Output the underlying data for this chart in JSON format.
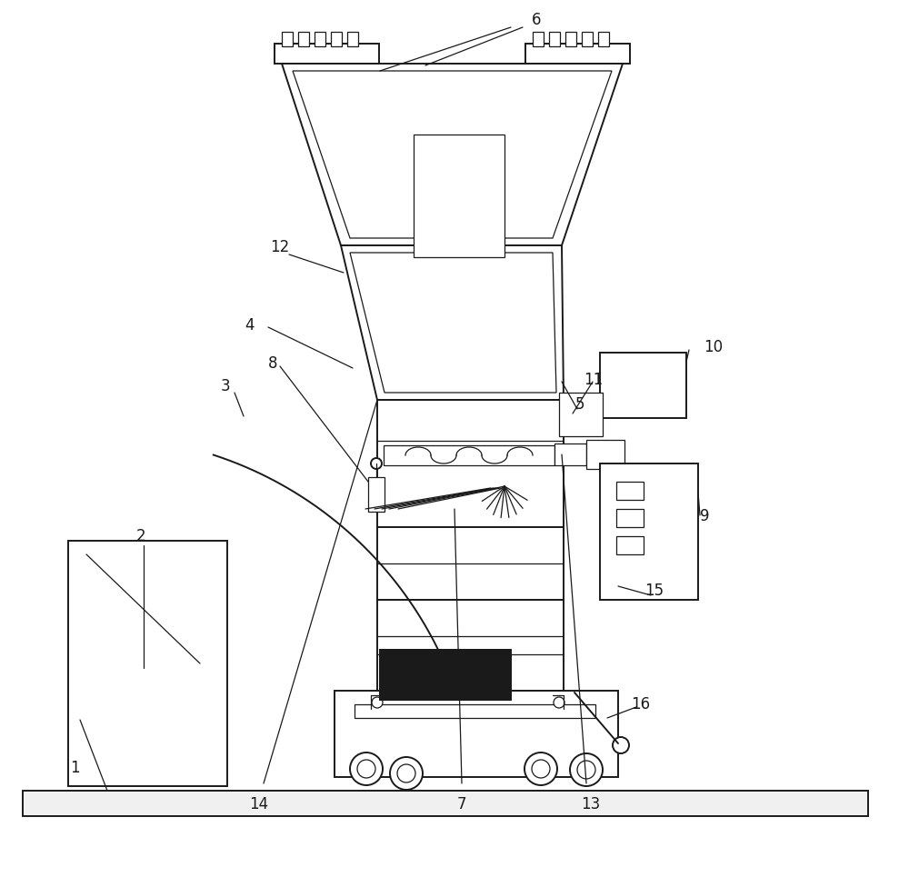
{
  "bg_color": "#ffffff",
  "line_color": "#1a1a1a",
  "lw": 1.4,
  "lw_thin": 0.9,
  "fig_w": 10.0,
  "fig_h": 9.76
}
